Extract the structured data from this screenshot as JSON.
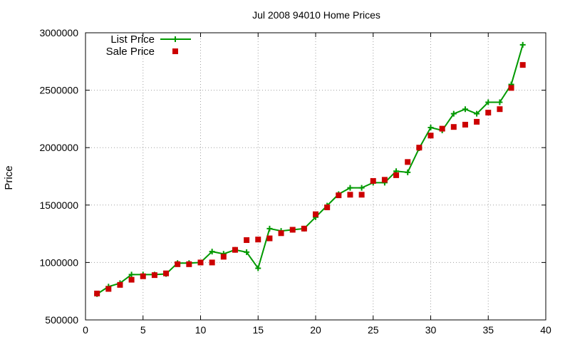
{
  "chart_data": {
    "type": "line",
    "title": "Jul 2008 94010 Home Prices",
    "xlabel": "",
    "ylabel": "Price",
    "xlim": [
      0,
      40
    ],
    "ylim": [
      500000,
      3000000
    ],
    "x_ticks": [
      "0",
      "5",
      "10",
      "15",
      "20",
      "25",
      "30",
      "35",
      "40"
    ],
    "y_ticks": [
      "500000",
      "1000000",
      "1500000",
      "2000000",
      "2500000",
      "3000000"
    ],
    "grid": true,
    "legend_position": "top-left",
    "series": [
      {
        "name": "List Price",
        "style": "line-plus",
        "color": "#009900",
        "x": [
          1,
          2,
          3,
          4,
          5,
          6,
          7,
          8,
          9,
          10,
          11,
          12,
          13,
          14,
          15,
          16,
          17,
          18,
          19,
          20,
          21,
          22,
          23,
          24,
          25,
          26,
          27,
          28,
          29,
          30,
          31,
          32,
          33,
          34,
          35,
          36,
          37,
          38
        ],
        "y": [
          725000,
          790000,
          820000,
          895000,
          895000,
          895000,
          900000,
          995000,
          995000,
          1000000,
          1095000,
          1075000,
          1110000,
          1090000,
          950000,
          1295000,
          1275000,
          1285000,
          1295000,
          1395000,
          1495000,
          1595000,
          1650000,
          1650000,
          1695000,
          1695000,
          1795000,
          1785000,
          1995000,
          2175000,
          2150000,
          2295000,
          2335000,
          2295000,
          2395000,
          2395000,
          2550000,
          2895000
        ]
      },
      {
        "name": "Sale Price",
        "style": "square-markers",
        "color": "#cc0000",
        "x": [
          1,
          2,
          3,
          4,
          5,
          6,
          7,
          8,
          9,
          10,
          11,
          12,
          13,
          14,
          15,
          16,
          17,
          18,
          19,
          20,
          21,
          22,
          23,
          24,
          25,
          26,
          27,
          28,
          29,
          30,
          31,
          32,
          33,
          34,
          35,
          36,
          37,
          38
        ],
        "y": [
          730000,
          770000,
          805000,
          850000,
          880000,
          890000,
          905000,
          985000,
          985000,
          1000000,
          1000000,
          1050000,
          1110000,
          1195000,
          1200000,
          1210000,
          1255000,
          1285000,
          1295000,
          1420000,
          1480000,
          1585000,
          1590000,
          1590000,
          1710000,
          1720000,
          1760000,
          1875000,
          2000000,
          2105000,
          2165000,
          2180000,
          2200000,
          2225000,
          2305000,
          2335000,
          2520000,
          2720000
        ]
      }
    ]
  }
}
